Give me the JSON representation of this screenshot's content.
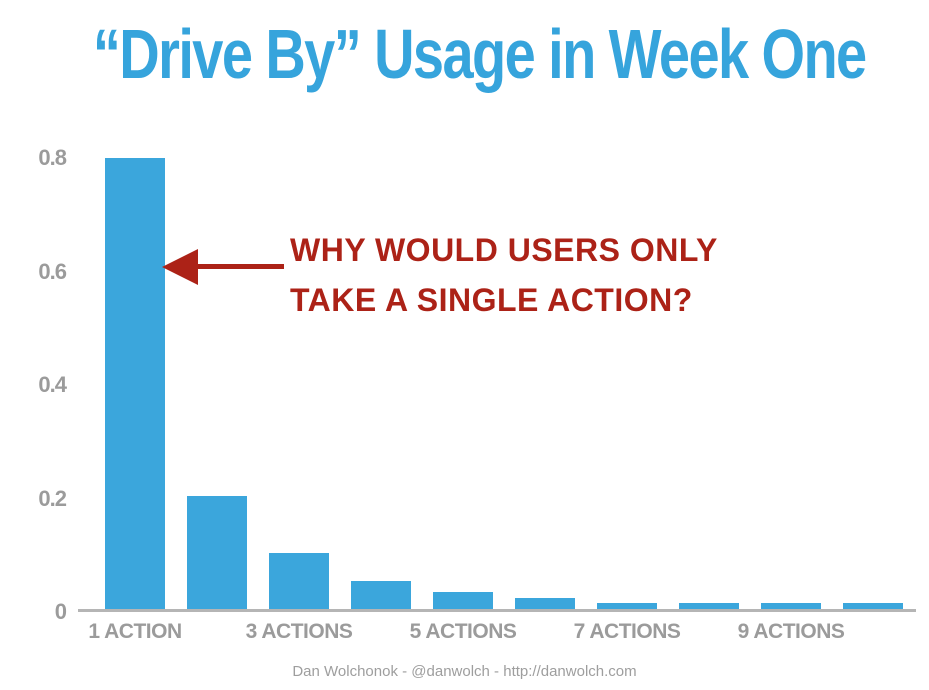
{
  "chart_data": {
    "type": "bar",
    "title": "“Drive By” Usage in Week One",
    "x": [
      1,
      2,
      3,
      4,
      5,
      6,
      7,
      8,
      9,
      10
    ],
    "values": [
      0.8,
      0.2,
      0.1,
      0.05,
      0.03,
      0.02,
      0.01,
      0.01,
      0.01,
      0.01
    ],
    "x_tick_labels": [
      {
        "x": 1,
        "label": "1 ACTION"
      },
      {
        "x": 3,
        "label": "3 ACTIONS"
      },
      {
        "x": 5,
        "label": "5 ACTIONS"
      },
      {
        "x": 7,
        "label": "7 ACTIONS"
      },
      {
        "x": 9,
        "label": "9 ACTIONS"
      }
    ],
    "yticks": [
      "0",
      "0.2",
      "0.4",
      "0.6",
      "0.8"
    ],
    "ylim": [
      0,
      0.8
    ],
    "grid": false,
    "legend": false,
    "bar_color": "#3BA6DC",
    "annotation": {
      "lines": [
        "WHY WOULD USERS ONLY",
        "TAKE A SINGLE ACTION?"
      ],
      "arrow_direction": "left",
      "color": "#AC2217"
    }
  },
  "colors": {
    "title_blue": "#36A4DC",
    "bar_blue": "#3BA6DC",
    "annotation_red": "#AC2217",
    "axis_gray": "#9B9B9B"
  },
  "footer": {
    "credit": "Dan Wolchonok - @danwolch - http://danwolch.com"
  }
}
